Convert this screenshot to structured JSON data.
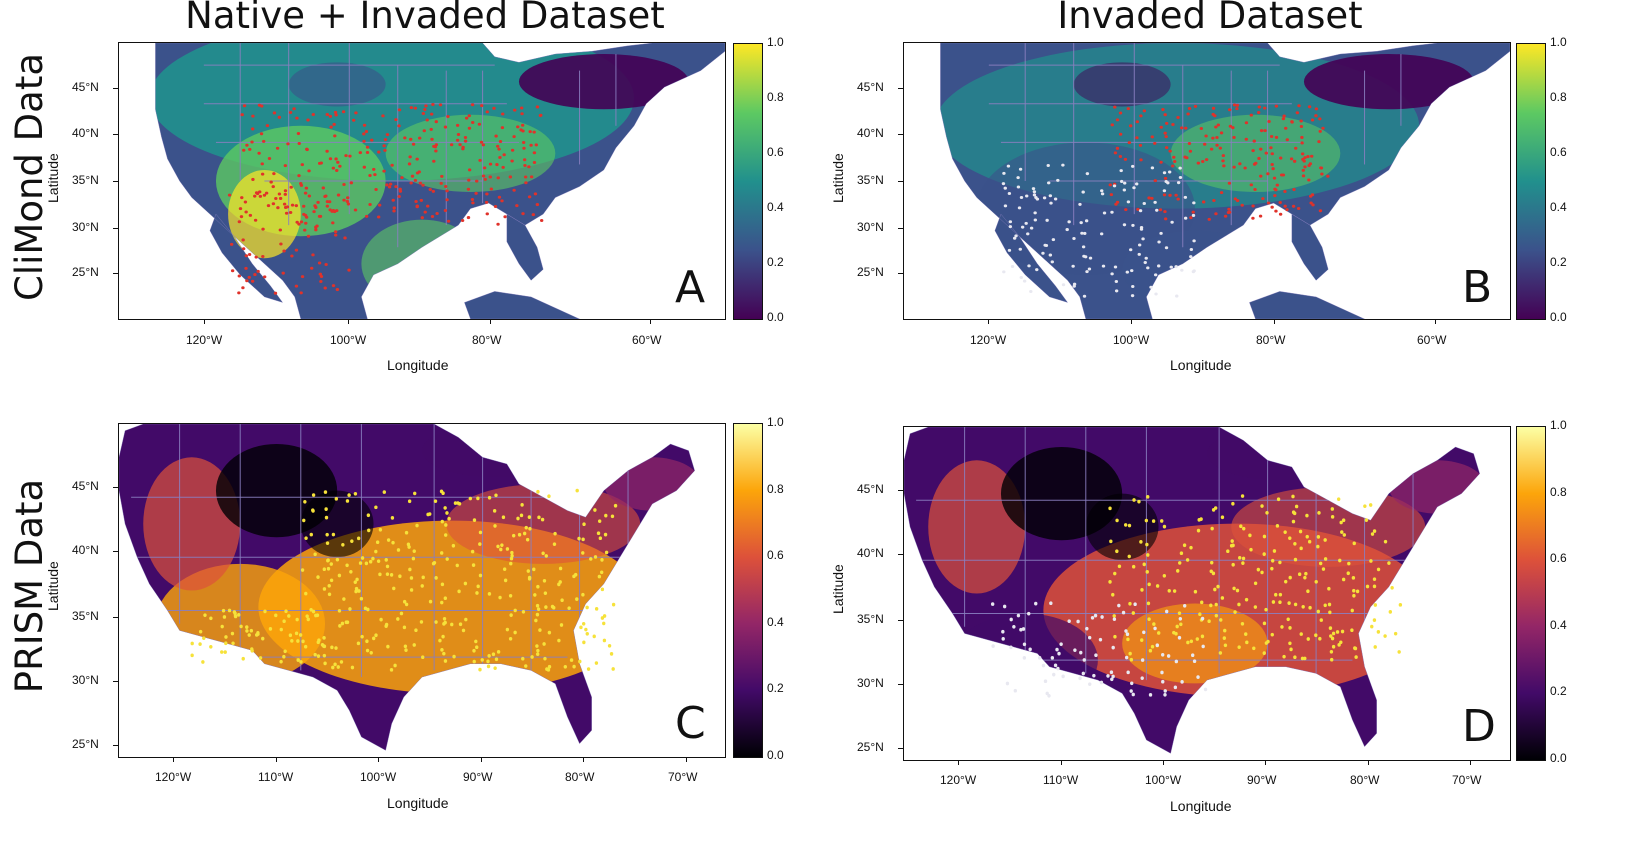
{
  "column_titles": [
    "Native + Invaded Dataset",
    "Invaded Dataset"
  ],
  "row_titles": [
    "CliMond Data",
    "PRISM Data"
  ],
  "palettes": {
    "viridis": [
      "#440154",
      "#3b528b",
      "#21908d",
      "#5dc962",
      "#fde725"
    ],
    "inferno": [
      "#000004",
      "#420a68",
      "#932667",
      "#dd513a",
      "#fca50a",
      "#fcffa4"
    ]
  },
  "point_colors": {
    "native_invaded_climond": "#e0322a",
    "invaded_climond_red": "#e0322a",
    "invaded_climond_white": "#e8e8f0",
    "prism_yellow": "#f6e23a",
    "prism_white": "#e8e8f0"
  },
  "boundary_color": "#8a7fc0",
  "panels": [
    {
      "letter": "A",
      "palette": "viridis",
      "x_axis_label": "Longitude",
      "y_axis_label": "Latitude",
      "x_ticks": [
        "120°W",
        "100°W",
        "80°W",
        "60°W"
      ],
      "y_ticks": [
        "45°N",
        "40°N",
        "35°N",
        "30°N",
        "25°N"
      ],
      "colorbar_ticks": [
        "1.0",
        "0.8",
        "0.6",
        "0.4",
        "0.2",
        "0.0"
      ]
    },
    {
      "letter": "B",
      "palette": "viridis",
      "x_axis_label": "Longitude",
      "y_axis_label": "Latitude",
      "x_ticks": [
        "120°W",
        "100°W",
        "80°W",
        "60°W"
      ],
      "y_ticks": [
        "45°N",
        "40°N",
        "35°N",
        "30°N",
        "25°N"
      ],
      "colorbar_ticks": [
        "1.0",
        "0.8",
        "0.6",
        "0.4",
        "0.2",
        "0.0"
      ]
    },
    {
      "letter": "C",
      "palette": "inferno",
      "x_axis_label": "Longitude",
      "y_axis_label": "Latitude",
      "x_ticks": [
        "120°W",
        "110°W",
        "100°W",
        "90°W",
        "80°W",
        "70°W"
      ],
      "y_ticks": [
        "45°N",
        "40°N",
        "35°N",
        "30°N",
        "25°N"
      ],
      "colorbar_ticks": [
        "1.0",
        "0.8",
        "0.6",
        "0.4",
        "0.2",
        "0.0"
      ]
    },
    {
      "letter": "D",
      "palette": "inferno",
      "x_axis_label": "Longitude",
      "y_axis_label": "Latitude",
      "x_ticks": [
        "120°W",
        "110°W",
        "100°W",
        "90°W",
        "80°W",
        "70°W"
      ],
      "y_ticks": [
        "45°N",
        "40°N",
        "35°N",
        "30°N",
        "25°N"
      ],
      "colorbar_ticks": [
        "1.0",
        "0.8",
        "0.6",
        "0.4",
        "0.2",
        "0.0"
      ]
    }
  ]
}
